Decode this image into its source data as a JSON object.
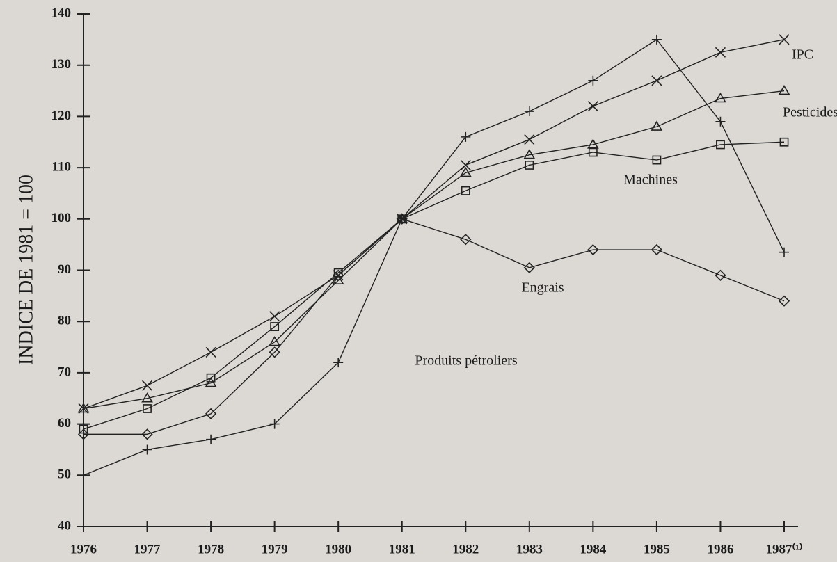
{
  "chart_data": {
    "type": "line",
    "ylabel": "INDICE DE 1981 = 100",
    "categories": [
      "1976",
      "1977",
      "1978",
      "1979",
      "1980",
      "1981",
      "1982",
      "1983",
      "1984",
      "1985",
      "1986",
      "1987⁽¹⁾"
    ],
    "ylim": [
      40,
      140
    ],
    "yticks": [
      40,
      50,
      60,
      70,
      80,
      90,
      100,
      110,
      120,
      130,
      140
    ],
    "series": [
      {
        "name": "IPC",
        "color": "#222222",
        "marker": "x",
        "values": [
          63,
          67.5,
          74,
          81,
          89,
          100,
          110.5,
          115.5,
          122,
          127,
          132.5,
          135
        ]
      },
      {
        "name": "Pesticides",
        "color": "#222222",
        "marker": "triangle",
        "values": [
          63,
          65,
          68,
          76,
          88,
          100,
          109,
          112.5,
          114.5,
          118,
          123.5,
          125
        ]
      },
      {
        "name": "Machines",
        "color": "#222222",
        "marker": "square",
        "values": [
          59,
          63,
          69,
          79,
          89.5,
          100,
          105.5,
          110.5,
          113,
          111.5,
          114.5,
          115
        ]
      },
      {
        "name": "Engrais",
        "color": "#222222",
        "marker": "diamond",
        "values": [
          58,
          58,
          62,
          74,
          89,
          100,
          96,
          90.5,
          94,
          94,
          89,
          84
        ]
      },
      {
        "name": "Produits pétroliers",
        "color": "#222222",
        "marker": "plus",
        "values": [
          50,
          55,
          57,
          60,
          72,
          100,
          116,
          121,
          127,
          135,
          119,
          93.5
        ]
      }
    ]
  }
}
